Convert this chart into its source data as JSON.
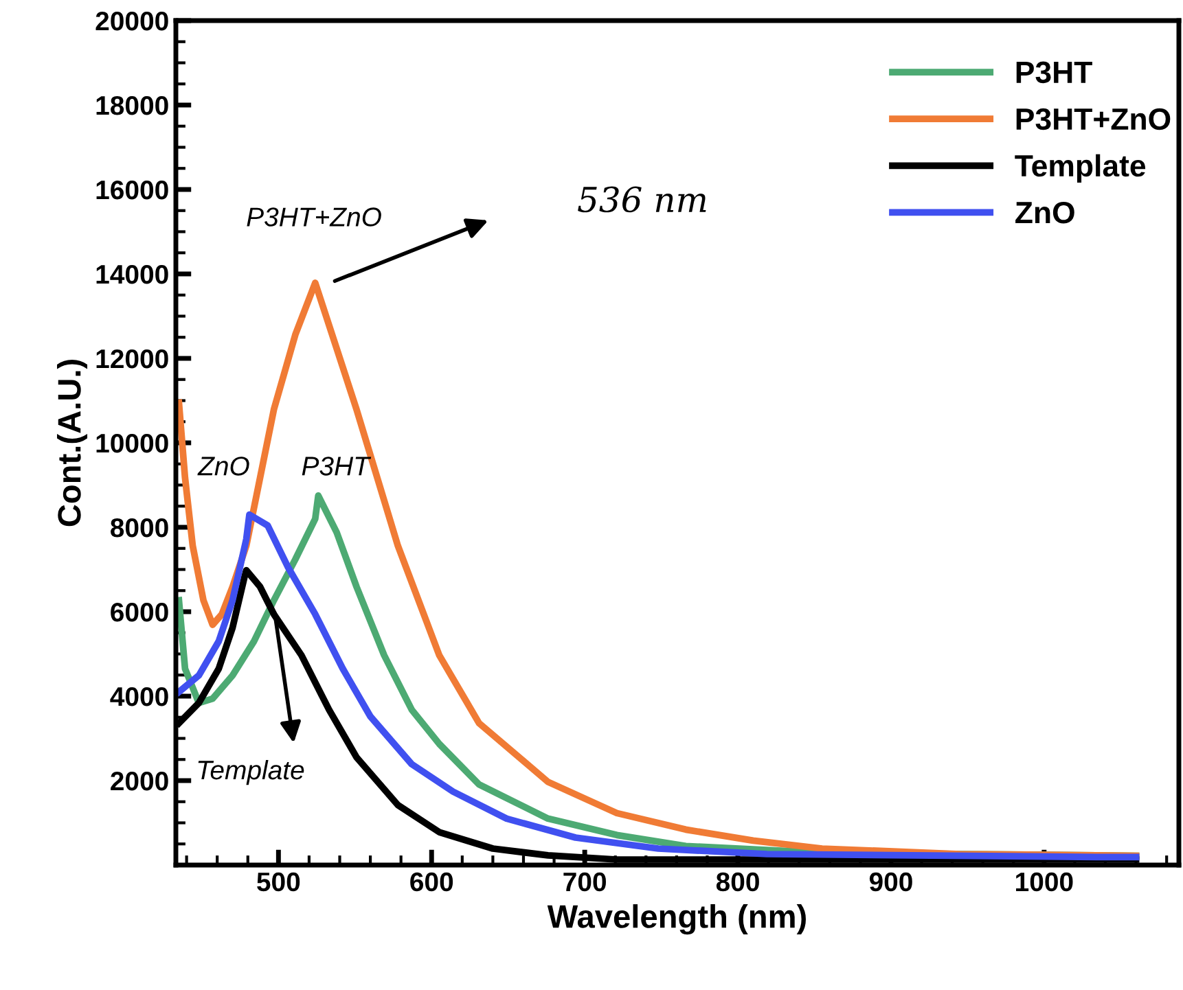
{
  "chart_data": {
    "type": "line",
    "xlabel": "Wavelength (nm)",
    "ylabel": "Cont.(A.U.)",
    "xlim": [
      433,
      1088
    ],
    "ylim": [
      0,
      20000
    ],
    "xticks": [
      500,
      600,
      700,
      800,
      900,
      1000
    ],
    "yticks": [
      2000,
      4000,
      6000,
      8000,
      10000,
      12000,
      14000,
      16000,
      18000,
      20000
    ],
    "legend": "top right",
    "grid": false,
    "marker": "none",
    "line_style": "solid",
    "annotations": [
      "P3HT+ZnO",
      "536 nm",
      "ZnO",
      "P3HT",
      "Template"
    ],
    "series": [
      {
        "name": "P3HT",
        "color": "#4daa73",
        "x": [
          435,
          439,
          448,
          457,
          470,
          484,
          497,
          511,
          524,
          526,
          538,
          551,
          569,
          587,
          605,
          631,
          676,
          721,
          766,
          855,
          1034,
          1060
        ],
        "values": [
          6270,
          4650,
          3840,
          3940,
          4490,
          5300,
          6270,
          7240,
          8200,
          8750,
          7880,
          6590,
          4970,
          3680,
          2870,
          1910,
          1100,
          710,
          450,
          290,
          230,
          220
        ]
      },
      {
        "name": "P3HT+ZnO",
        "color": "#f07b35",
        "x": [
          435,
          439,
          444,
          451,
          457,
          463,
          470,
          479,
          497,
          511,
          524,
          551,
          578,
          605,
          631,
          676,
          721,
          766,
          810,
          855,
          945,
          1034,
          1060
        ],
        "values": [
          10950,
          9170,
          7560,
          6270,
          5690,
          5940,
          6590,
          7560,
          10790,
          12560,
          13790,
          10790,
          7560,
          4970,
          3360,
          1970,
          1230,
          840,
          580,
          390,
          260,
          230,
          220
        ]
      },
      {
        "name": "Template",
        "color": "#000000",
        "x": [
          435,
          448,
          461,
          470,
          478,
          479,
          488,
          497,
          515,
          533,
          551,
          578,
          605,
          640,
          676,
          721,
          1034,
          1060
        ],
        "values": [
          3360,
          3840,
          4650,
          5620,
          6850,
          6980,
          6590,
          5940,
          4970,
          3680,
          2550,
          1420,
          780,
          390,
          230,
          130,
          130,
          130
        ]
      },
      {
        "name": "ZnO",
        "color": "#4050f0",
        "x": [
          435,
          448,
          461,
          470,
          479,
          481,
          493,
          506,
          524,
          542,
          560,
          587,
          614,
          649,
          694,
          748,
          819,
          1034,
          1060
        ],
        "values": [
          4100,
          4490,
          5300,
          6270,
          7720,
          8300,
          8040,
          7070,
          5940,
          4650,
          3520,
          2390,
          1740,
          1100,
          650,
          390,
          260,
          190,
          190
        ]
      }
    ]
  }
}
